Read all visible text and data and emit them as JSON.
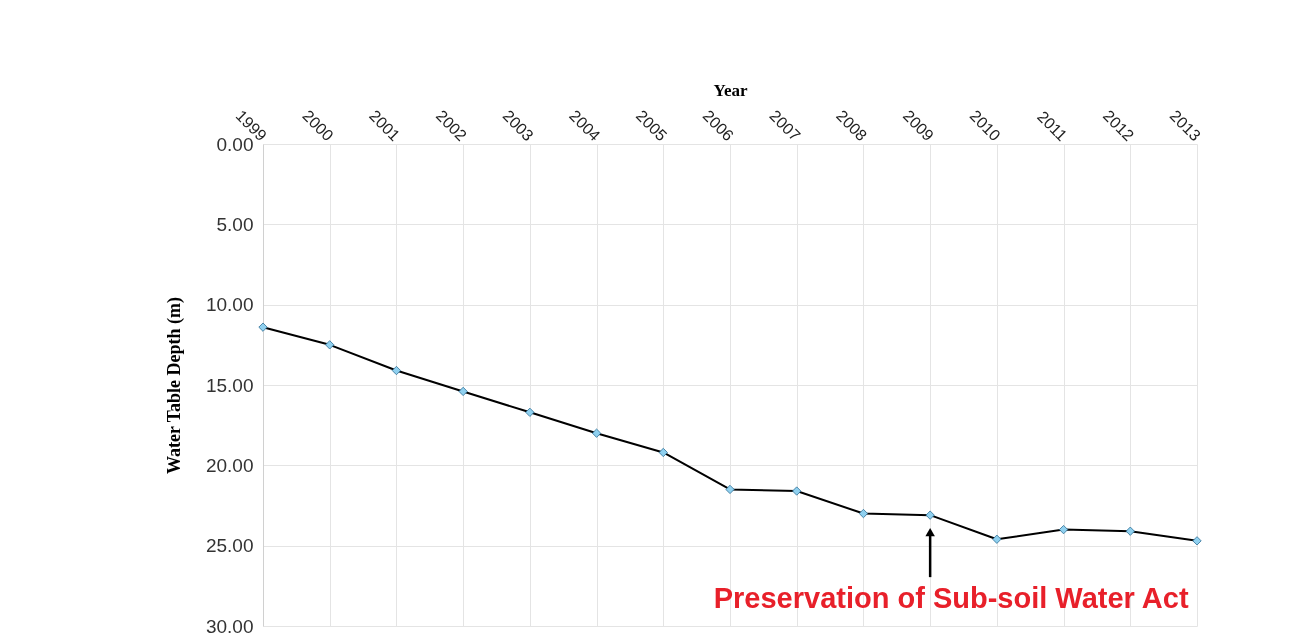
{
  "chart_data": {
    "type": "line",
    "xlabel": "Year",
    "ylabel": "Water Table Depth (m)",
    "categories": [
      "1999",
      "2000",
      "2001",
      "2002",
      "2003",
      "2004",
      "2005",
      "2006",
      "2007",
      "2008",
      "2009",
      "2010",
      "2011",
      "2012",
      "2013"
    ],
    "series": [
      {
        "color": "#000000",
        "values": [
          11.4,
          12.5,
          14.1,
          15.4,
          16.7,
          18.0,
          19.2,
          21.5,
          21.6,
          23.0,
          23.1,
          24.6,
          24.0,
          24.1,
          24.7
        ]
      }
    ],
    "ylim": [
      30,
      0
    ],
    "yticks": [
      {
        "value": 0,
        "label": "0.00"
      },
      {
        "value": 5,
        "label": "5.00"
      },
      {
        "value": 10,
        "label": "10.00"
      },
      {
        "value": 15,
        "label": "15.00"
      },
      {
        "value": 20,
        "label": "20.00"
      },
      {
        "value": 25,
        "label": "25.00"
      },
      {
        "value": 30,
        "label": "30.00"
      }
    ],
    "grid": true,
    "marker": "diamond",
    "line_style": "solid",
    "annotations": [
      {
        "text": "Preservation of  Sub-soil Water Act",
        "x": "2009",
        "y": 23.1
      }
    ]
  }
}
